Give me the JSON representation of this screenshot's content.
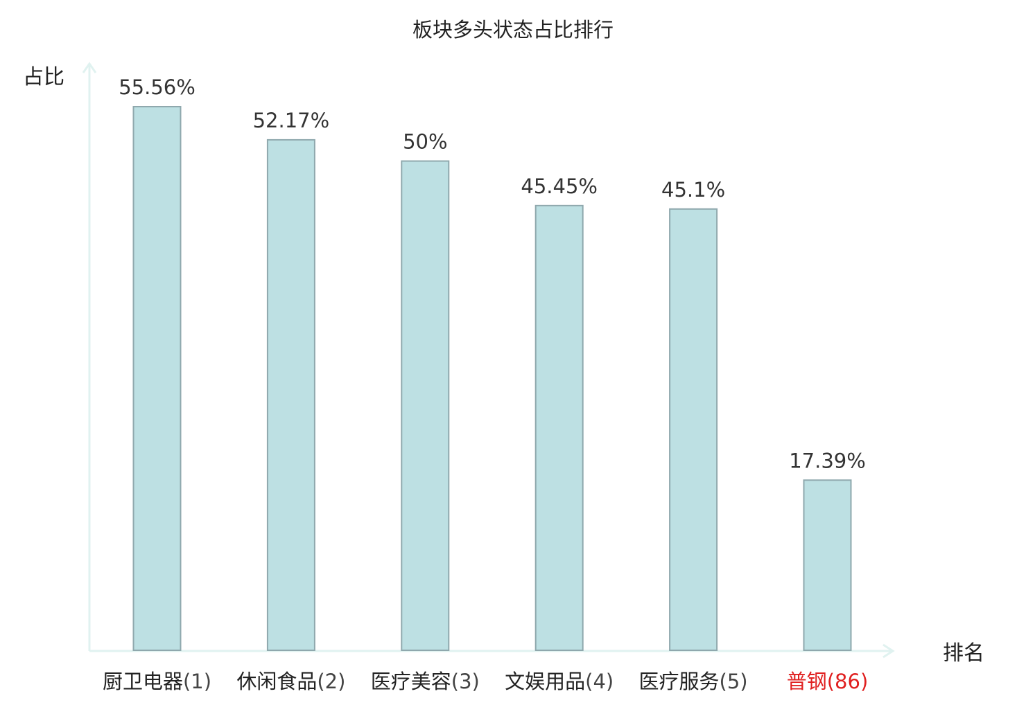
{
  "chart_data": {
    "type": "bar",
    "title": "板块多头状态占比排行",
    "xlabel": "排名",
    "ylabel": "占比",
    "categories": [
      {
        "name": "厨卫电器",
        "rank": "(1)"
      },
      {
        "name": "休闲食品",
        "rank": "(2)"
      },
      {
        "name": "医疗美容",
        "rank": "(3)"
      },
      {
        "name": "文娱用品",
        "rank": "(4)"
      },
      {
        "name": "医疗服务",
        "rank": "(5)"
      },
      {
        "name": "普钢",
        "rank": "(86)",
        "highlight": true
      }
    ],
    "values": [
      55.56,
      52.17,
      50,
      45.45,
      45.1,
      17.39
    ],
    "value_labels": [
      "55.56%",
      "52.17%",
      "50%",
      "45.45%",
      "45.1%",
      "17.39%"
    ],
    "ylim": [
      0,
      55.56
    ],
    "grid": false,
    "legend": "none",
    "colors": {
      "bar_fill": "#bde0e3",
      "bar_stroke": "#8fa8ad",
      "axis": "#e0f2f0",
      "highlight_label": "#e02020",
      "label": "#222222",
      "value_label": "#333333"
    }
  }
}
